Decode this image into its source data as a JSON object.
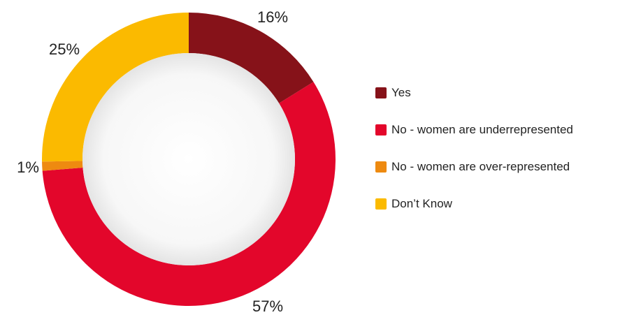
{
  "chart_data": {
    "type": "pie",
    "donut": true,
    "categories": [
      "Yes",
      "No - women are underrepresented",
      "No - women are over-represented",
      "Don’t Know"
    ],
    "values": [
      16,
      57,
      1,
      25
    ],
    "value_labels": [
      "16%",
      "57%",
      "1%",
      "25%"
    ],
    "colors": [
      "#861219",
      "#E3062B",
      "#EE8A10",
      "#FBBA00"
    ],
    "legend_position": "right",
    "title": ""
  }
}
